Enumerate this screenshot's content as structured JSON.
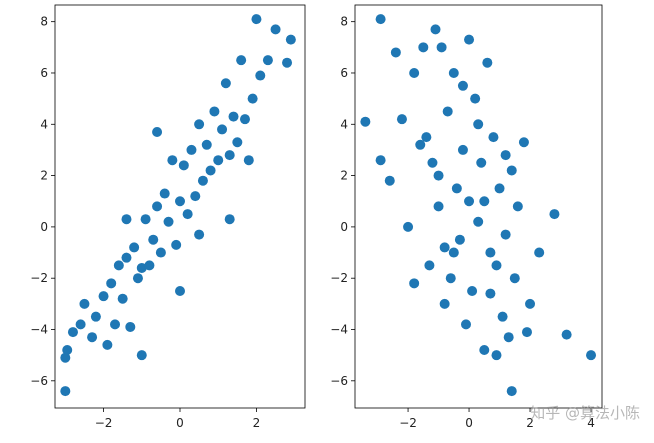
{
  "chart_data": [
    {
      "type": "scatter",
      "color": "#1f77b4",
      "x": [
        -3,
        -3,
        -2.95,
        -2.8,
        -2.6,
        -2.5,
        -2.3,
        -2.2,
        -2,
        -1.9,
        -1.8,
        -1.7,
        -1.6,
        -1.5,
        -1.4,
        -1.3,
        -1.2,
        -1.1,
        -1,
        -1,
        -0.9,
        -0.8,
        -0.7,
        -0.6,
        -0.5,
        -0.4,
        -0.3,
        -0.2,
        -0.1,
        0,
        0,
        0.1,
        0.2,
        0.3,
        0.4,
        0.5,
        0.6,
        0.7,
        0.8,
        0.9,
        1,
        1.1,
        1.2,
        1.3,
        1.4,
        1.5,
        1.6,
        1.7,
        1.8,
        1.9,
        2,
        2.1,
        2.3,
        2.5,
        2.8,
        2.9,
        -0.6,
        0.5,
        -1.4,
        1.3
      ],
      "values": [
        -6.4,
        -5.1,
        -4.8,
        -4.1,
        -3.8,
        -3,
        -4.3,
        -3.5,
        -2.7,
        -4.6,
        -2.2,
        -3.8,
        -1.5,
        -2.8,
        -1.2,
        -3.9,
        -0.8,
        -2,
        -5,
        -1.6,
        0.3,
        -1.5,
        -0.5,
        0.8,
        -1,
        1.3,
        0.2,
        2.6,
        -0.7,
        1,
        -2.5,
        2.4,
        0.5,
        3,
        1.2,
        4,
        1.8,
        3.2,
        2.2,
        4.5,
        2.6,
        3.8,
        5.6,
        2.8,
        4.3,
        3.3,
        6.5,
        4.2,
        2.6,
        5,
        8.1,
        5.9,
        6.5,
        7.7,
        6.4,
        7.3,
        3.7,
        -0.3,
        0.3,
        0.3
      ],
      "xlim": [
        -3.27,
        3.27
      ],
      "ylim": [
        -7.06,
        8.65
      ],
      "xticks": [
        {
          "value": -2,
          "label": "−2"
        },
        0,
        2
      ],
      "yticks": [
        {
          "value": -6,
          "label": "−6"
        },
        {
          "value": -4,
          "label": "−4"
        },
        {
          "value": -2,
          "label": "−2"
        },
        0,
        2,
        4,
        6,
        8
      ]
    },
    {
      "type": "scatter",
      "color": "#1f77b4",
      "x": [
        -3.4,
        -2.9,
        -2.9,
        -2.6,
        -2.4,
        -2.2,
        -2,
        -1.8,
        -1.6,
        -1.5,
        -1.3,
        -1.2,
        -1.1,
        -1,
        -0.9,
        -0.8,
        -0.7,
        -0.6,
        -0.5,
        -0.4,
        -0.3,
        -0.2,
        -0.1,
        0,
        0,
        0.1,
        0.2,
        0.3,
        0.4,
        0.5,
        0.6,
        0.7,
        0.8,
        0.9,
        1,
        1.1,
        1.2,
        1.3,
        1.4,
        1.5,
        1.6,
        1.8,
        2,
        2.3,
        2.8,
        3.2,
        4,
        -1,
        -0.5,
        0.3,
        0.9,
        -1.8,
        1.9,
        0.5,
        -0.2,
        1.2,
        -0.8,
        0.7,
        1.4,
        -1.4
      ],
      "values": [
        4.1,
        8.1,
        2.6,
        1.8,
        6.8,
        4.2,
        0,
        6,
        3.2,
        7,
        -1.5,
        2.5,
        7.7,
        0.8,
        7,
        -3,
        4.5,
        -2,
        6,
        1.5,
        -0.5,
        3,
        -3.8,
        7.3,
        1,
        -2.5,
        5,
        0.2,
        2.5,
        -4.8,
        6.4,
        -1,
        3.5,
        -5,
        1.5,
        -3.5,
        2.8,
        -4.3,
        -6.4,
        -2,
        0.8,
        3.3,
        -3,
        -1,
        0.5,
        -4.2,
        -5,
        2,
        -1,
        4,
        -1.5,
        -2.2,
        -4.1,
        1,
        5.5,
        -0.3,
        -0.8,
        -2.6,
        2.2,
        3.5
      ],
      "xlim": [
        -3.74,
        4.36
      ],
      "ylim": [
        -7.06,
        8.65
      ],
      "xticks": [
        {
          "value": -2,
          "label": "−2"
        },
        0,
        2,
        4
      ],
      "yticks": [
        {
          "value": -6,
          "label": "−6"
        },
        {
          "value": -4,
          "label": "−4"
        },
        {
          "value": -2,
          "label": "−2"
        },
        0,
        2,
        4,
        6,
        8
      ]
    }
  ],
  "watermark": "知乎 @算法小陈"
}
